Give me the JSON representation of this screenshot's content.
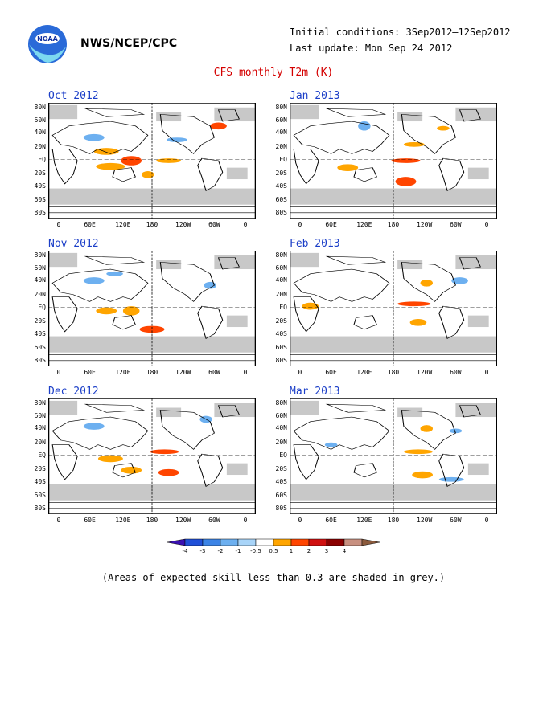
{
  "header": {
    "org": "NWS/NCEP/CPC",
    "logo_text": "NOAA",
    "initial_conditions": "Initial conditions: 3Sep2012–12Sep2012",
    "last_update": "Last update: Mon Sep 24 2012",
    "title": "CFS monthly T2m (K)"
  },
  "axes": {
    "lat_labels": [
      "80N",
      "60N",
      "40N",
      "20N",
      "EQ",
      "20S",
      "40S",
      "60S",
      "80S"
    ],
    "lon_labels": [
      "0",
      "60E",
      "120E",
      "180",
      "120W",
      "60W",
      "0"
    ]
  },
  "panels": [
    {
      "title": "Oct 2012"
    },
    {
      "title": "Jan 2013"
    },
    {
      "title": "Nov 2012"
    },
    {
      "title": "Feb 2013"
    },
    {
      "title": "Dec 2012"
    },
    {
      "title": "Mar 2013"
    }
  ],
  "colorbar": {
    "tick_labels": [
      "-4",
      "-3",
      "-2",
      "-1",
      "-0.5",
      "0.5",
      "1",
      "2",
      "3",
      "4"
    ],
    "colors": [
      "#3a10b0",
      "#2050d8",
      "#3c84e6",
      "#6db0f0",
      "#a8d4f8",
      "#ffffff",
      "#ffa500",
      "#ff4500",
      "#d01010",
      "#8b0000",
      "#c89080",
      "#8b5a3c"
    ]
  },
  "colors": {
    "skill_shading": "#c8c8c8",
    "warm": "#ffa500",
    "warm_strong": "#ff4500",
    "cool": "#6db0f0",
    "title_red": "#d40000",
    "panel_title_blue": "#1c3fc8"
  },
  "footnote": "(Areas of expected skill less than 0.3 are shaded in grey.)"
}
